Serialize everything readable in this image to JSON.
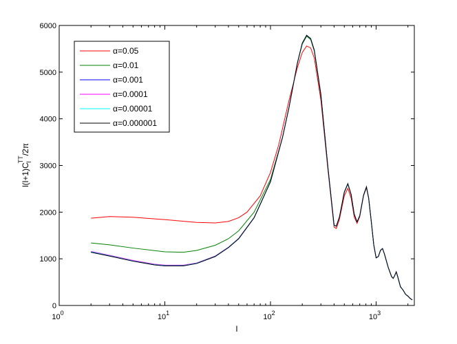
{
  "chart_data": {
    "type": "line",
    "title": "",
    "xlabel": "l",
    "ylabel_main": "l(l+1)C",
    "ylabel_sup": "TT",
    "ylabel_sub": "l",
    "ylabel_tail": "/2π",
    "xscale": "log",
    "xlim": [
      1,
      2300
    ],
    "ylim": [
      0,
      6000
    ],
    "x_ticks": [
      {
        "value": 1,
        "base": "10",
        "exp": "0"
      },
      {
        "value": 10,
        "base": "10",
        "exp": "1"
      },
      {
        "value": 100,
        "base": "10",
        "exp": "2"
      },
      {
        "value": 1000,
        "base": "10",
        "exp": "3"
      }
    ],
    "y_ticks": [
      0,
      1000,
      2000,
      3000,
      4000,
      5000,
      6000
    ],
    "grid": false,
    "legend_position": "top-left",
    "series": [
      {
        "name": "α=0.05",
        "color": "#ff0000",
        "points": [
          [
            2,
            1870
          ],
          [
            3,
            1905
          ],
          [
            5,
            1890
          ],
          [
            10,
            1840
          ],
          [
            20,
            1780
          ],
          [
            30,
            1770
          ],
          [
            40,
            1800
          ],
          [
            50,
            1880
          ],
          [
            60,
            2000
          ],
          [
            80,
            2350
          ],
          [
            100,
            2850
          ],
          [
            120,
            3450
          ],
          [
            150,
            4400
          ],
          [
            180,
            5100
          ],
          [
            200,
            5420
          ],
          [
            220,
            5560
          ],
          [
            240,
            5520
          ],
          [
            260,
            5300
          ],
          [
            300,
            4400
          ],
          [
            350,
            2900
          ],
          [
            400,
            1680
          ],
          [
            420,
            1650
          ],
          [
            450,
            1850
          ],
          [
            500,
            2350
          ],
          [
            540,
            2510
          ],
          [
            580,
            2300
          ],
          [
            620,
            1900
          ],
          [
            660,
            1760
          ],
          [
            700,
            1900
          ],
          [
            760,
            2350
          ],
          [
            810,
            2520
          ],
          [
            850,
            2300
          ],
          [
            900,
            1800
          ],
          [
            950,
            1300
          ],
          [
            1000,
            1020
          ],
          [
            1050,
            1050
          ],
          [
            1100,
            1180
          ],
          [
            1150,
            1220
          ],
          [
            1200,
            1100
          ],
          [
            1300,
            820
          ],
          [
            1400,
            620
          ],
          [
            1450,
            580
          ],
          [
            1500,
            640
          ],
          [
            1550,
            720
          ],
          [
            1600,
            620
          ],
          [
            1700,
            400
          ],
          [
            1800,
            330
          ],
          [
            1900,
            240
          ],
          [
            2000,
            200
          ],
          [
            2100,
            150
          ],
          [
            2200,
            120
          ]
        ]
      },
      {
        "name": "α=0.01",
        "color": "#008000",
        "points": [
          [
            2,
            1340
          ],
          [
            3,
            1300
          ],
          [
            5,
            1230
          ],
          [
            10,
            1150
          ],
          [
            15,
            1140
          ],
          [
            20,
            1180
          ],
          [
            30,
            1290
          ],
          [
            40,
            1430
          ],
          [
            50,
            1600
          ],
          [
            70,
            2000
          ],
          [
            100,
            2700
          ],
          [
            130,
            3600
          ],
          [
            150,
            4250
          ],
          [
            180,
            5200
          ],
          [
            200,
            5600
          ],
          [
            220,
            5770
          ],
          [
            240,
            5700
          ],
          [
            260,
            5450
          ],
          [
            300,
            4500
          ],
          [
            350,
            2950
          ],
          [
            400,
            1720
          ],
          [
            420,
            1700
          ],
          [
            450,
            1900
          ],
          [
            500,
            2420
          ],
          [
            540,
            2600
          ],
          [
            580,
            2370
          ],
          [
            620,
            1960
          ],
          [
            660,
            1790
          ],
          [
            700,
            1920
          ],
          [
            760,
            2360
          ],
          [
            810,
            2540
          ],
          [
            850,
            2300
          ],
          [
            900,
            1800
          ],
          [
            950,
            1300
          ],
          [
            1000,
            1020
          ],
          [
            1050,
            1050
          ],
          [
            1100,
            1180
          ],
          [
            1150,
            1220
          ],
          [
            1200,
            1100
          ],
          [
            1300,
            820
          ],
          [
            1400,
            620
          ],
          [
            1450,
            580
          ],
          [
            1500,
            640
          ],
          [
            1550,
            720
          ],
          [
            1600,
            620
          ],
          [
            1700,
            400
          ],
          [
            1800,
            330
          ],
          [
            1900,
            240
          ],
          [
            2000,
            200
          ],
          [
            2100,
            150
          ],
          [
            2200,
            120
          ]
        ]
      },
      {
        "name": "α=0.001",
        "color": "#0000ff",
        "points": [
          [
            2,
            1140
          ],
          [
            3,
            1060
          ],
          [
            5,
            950
          ],
          [
            8,
            870
          ],
          [
            10,
            850
          ],
          [
            15,
            850
          ],
          [
            20,
            900
          ],
          [
            30,
            1050
          ],
          [
            40,
            1240
          ],
          [
            50,
            1430
          ],
          [
            70,
            1880
          ],
          [
            100,
            2650
          ],
          [
            130,
            3600
          ],
          [
            150,
            4250
          ],
          [
            180,
            5200
          ],
          [
            200,
            5620
          ],
          [
            220,
            5790
          ],
          [
            240,
            5720
          ],
          [
            260,
            5470
          ],
          [
            300,
            4520
          ],
          [
            350,
            2950
          ],
          [
            400,
            1720
          ],
          [
            420,
            1700
          ],
          [
            450,
            1900
          ],
          [
            500,
            2430
          ],
          [
            540,
            2610
          ],
          [
            580,
            2380
          ],
          [
            620,
            1960
          ],
          [
            660,
            1790
          ],
          [
            700,
            1920
          ],
          [
            760,
            2360
          ],
          [
            810,
            2540
          ],
          [
            850,
            2300
          ],
          [
            900,
            1800
          ],
          [
            950,
            1300
          ],
          [
            1000,
            1020
          ],
          [
            1050,
            1050
          ],
          [
            1100,
            1180
          ],
          [
            1150,
            1220
          ],
          [
            1200,
            1100
          ],
          [
            1300,
            820
          ],
          [
            1400,
            620
          ],
          [
            1450,
            580
          ],
          [
            1500,
            640
          ],
          [
            1550,
            720
          ],
          [
            1600,
            620
          ],
          [
            1700,
            400
          ],
          [
            1800,
            330
          ],
          [
            1900,
            240
          ],
          [
            2000,
            200
          ],
          [
            2100,
            150
          ],
          [
            2200,
            120
          ]
        ]
      },
      {
        "name": "α=0.0001",
        "color": "#ff00ff",
        "points": [
          [
            2,
            1160
          ],
          [
            3,
            1075
          ],
          [
            5,
            965
          ],
          [
            8,
            885
          ],
          [
            10,
            865
          ],
          [
            15,
            865
          ],
          [
            20,
            910
          ],
          [
            30,
            1060
          ],
          [
            40,
            1250
          ],
          [
            50,
            1440
          ],
          [
            70,
            1885
          ],
          [
            100,
            2655
          ],
          [
            130,
            3600
          ],
          [
            150,
            4250
          ],
          [
            180,
            5200
          ],
          [
            200,
            5620
          ],
          [
            220,
            5790
          ],
          [
            240,
            5720
          ],
          [
            260,
            5470
          ],
          [
            300,
            4520
          ],
          [
            350,
            2950
          ],
          [
            400,
            1720
          ],
          [
            420,
            1700
          ],
          [
            450,
            1900
          ],
          [
            500,
            2430
          ],
          [
            540,
            2610
          ],
          [
            580,
            2380
          ],
          [
            620,
            1960
          ],
          [
            660,
            1790
          ],
          [
            700,
            1920
          ],
          [
            760,
            2360
          ],
          [
            810,
            2540
          ],
          [
            850,
            2300
          ],
          [
            900,
            1800
          ],
          [
            950,
            1300
          ],
          [
            1000,
            1020
          ],
          [
            1050,
            1050
          ],
          [
            1100,
            1180
          ],
          [
            1150,
            1220
          ],
          [
            1200,
            1100
          ],
          [
            1300,
            820
          ],
          [
            1400,
            620
          ],
          [
            1450,
            580
          ],
          [
            1500,
            640
          ],
          [
            1550,
            720
          ],
          [
            1600,
            620
          ],
          [
            1700,
            400
          ],
          [
            1800,
            330
          ],
          [
            1900,
            240
          ],
          [
            2000,
            200
          ],
          [
            2100,
            150
          ],
          [
            2200,
            120
          ]
        ]
      },
      {
        "name": "α=0.00001",
        "color": "#00ffff",
        "points": [
          [
            2,
            1150
          ],
          [
            3,
            1065
          ],
          [
            5,
            955
          ],
          [
            8,
            875
          ],
          [
            10,
            855
          ],
          [
            15,
            855
          ],
          [
            20,
            905
          ],
          [
            30,
            1055
          ],
          [
            40,
            1245
          ],
          [
            50,
            1435
          ],
          [
            70,
            1882
          ],
          [
            100,
            2652
          ],
          [
            130,
            3600
          ],
          [
            150,
            4250
          ],
          [
            180,
            5200
          ],
          [
            200,
            5620
          ],
          [
            220,
            5790
          ],
          [
            240,
            5720
          ],
          [
            260,
            5470
          ],
          [
            300,
            4520
          ],
          [
            350,
            2950
          ],
          [
            400,
            1720
          ],
          [
            420,
            1700
          ],
          [
            450,
            1900
          ],
          [
            500,
            2430
          ],
          [
            540,
            2610
          ],
          [
            580,
            2380
          ],
          [
            620,
            1960
          ],
          [
            660,
            1790
          ],
          [
            700,
            1920
          ],
          [
            760,
            2360
          ],
          [
            810,
            2540
          ],
          [
            850,
            2300
          ],
          [
            900,
            1800
          ],
          [
            950,
            1300
          ],
          [
            1000,
            1020
          ],
          [
            1050,
            1050
          ],
          [
            1100,
            1180
          ],
          [
            1150,
            1220
          ],
          [
            1200,
            1100
          ],
          [
            1300,
            820
          ],
          [
            1400,
            620
          ],
          [
            1450,
            580
          ],
          [
            1500,
            640
          ],
          [
            1550,
            720
          ],
          [
            1600,
            620
          ],
          [
            1700,
            400
          ],
          [
            1800,
            330
          ],
          [
            1900,
            240
          ],
          [
            2000,
            200
          ],
          [
            2100,
            150
          ],
          [
            2200,
            120
          ]
        ]
      },
      {
        "name": "α=0.000001",
        "color": "#000000",
        "points": [
          [
            2,
            1140
          ],
          [
            3,
            1060
          ],
          [
            5,
            950
          ],
          [
            8,
            870
          ],
          [
            10,
            850
          ],
          [
            15,
            850
          ],
          [
            20,
            900
          ],
          [
            30,
            1050
          ],
          [
            40,
            1240
          ],
          [
            50,
            1430
          ],
          [
            70,
            1880
          ],
          [
            100,
            2650
          ],
          [
            130,
            3600
          ],
          [
            150,
            4250
          ],
          [
            180,
            5200
          ],
          [
            200,
            5620
          ],
          [
            220,
            5790
          ],
          [
            240,
            5720
          ],
          [
            260,
            5470
          ],
          [
            300,
            4520
          ],
          [
            350,
            2950
          ],
          [
            400,
            1720
          ],
          [
            420,
            1700
          ],
          [
            450,
            1900
          ],
          [
            500,
            2430
          ],
          [
            540,
            2610
          ],
          [
            580,
            2380
          ],
          [
            620,
            1960
          ],
          [
            660,
            1790
          ],
          [
            700,
            1920
          ],
          [
            760,
            2360
          ],
          [
            810,
            2540
          ],
          [
            850,
            2300
          ],
          [
            900,
            1800
          ],
          [
            950,
            1300
          ],
          [
            1000,
            1020
          ],
          [
            1050,
            1050
          ],
          [
            1100,
            1180
          ],
          [
            1150,
            1220
          ],
          [
            1200,
            1100
          ],
          [
            1300,
            820
          ],
          [
            1400,
            620
          ],
          [
            1450,
            580
          ],
          [
            1500,
            640
          ],
          [
            1550,
            720
          ],
          [
            1600,
            620
          ],
          [
            1700,
            400
          ],
          [
            1800,
            330
          ],
          [
            1900,
            240
          ],
          [
            2000,
            200
          ],
          [
            2100,
            150
          ],
          [
            2200,
            120
          ]
        ]
      }
    ]
  }
}
